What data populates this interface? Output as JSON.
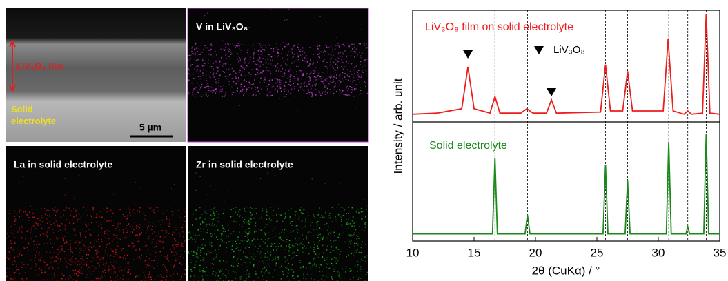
{
  "images": {
    "sem": {
      "film_label": "LiV₃O₈ film",
      "electrolyte_label": "Solid electrolyte",
      "scale_bar": "5 µm"
    },
    "maps": [
      {
        "label": "V in LiV₃O₈",
        "color": "#c040d0"
      },
      {
        "label": "La in solid electrolyte",
        "color": "#d01818"
      },
      {
        "label": "Zr in solid electrolyte",
        "color": "#20b020"
      }
    ]
  },
  "chart_data": [
    {
      "type": "line",
      "ylabel": "Intensity / arb. unit",
      "xlim": [
        10,
        35
      ],
      "ylim": [
        0,
        100
      ],
      "x": [
        10,
        12,
        14.0,
        14.5,
        15.0,
        16.3,
        16.7,
        17.1,
        18.8,
        19.3,
        19.8,
        20.9,
        21.3,
        21.7,
        25.3,
        25.7,
        26.1,
        27.1,
        27.5,
        27.9,
        30.4,
        30.8,
        31.2,
        32.1,
        32.4,
        32.7,
        33.6,
        33.9,
        34.2,
        35
      ],
      "series": [
        {
          "name": "LiV₃O₈ film on solid electrolyte",
          "color": "#ee1c1c",
          "values": [
            7,
            8,
            12,
            50,
            12,
            8,
            23,
            8,
            8,
            12,
            8,
            8,
            20,
            8,
            9,
            52,
            10,
            10,
            46,
            10,
            10,
            75,
            10,
            7,
            10,
            7,
            8,
            98,
            8,
            7
          ]
        }
      ],
      "peak_markers": [
        14.5,
        21.3
      ],
      "annotation": "LiV₃O₈",
      "vlines": [
        16.7,
        19.35,
        25.7,
        27.5,
        30.85,
        32.4,
        33.9
      ]
    },
    {
      "type": "line",
      "xlabel": "2θ (CuKα) / °",
      "xlim": [
        10,
        35
      ],
      "ylim": [
        0,
        100
      ],
      "xticks": [
        10,
        15,
        20,
        25,
        30,
        35
      ],
      "x": [
        10,
        16.5,
        16.7,
        16.9,
        19.15,
        19.35,
        19.55,
        25.5,
        25.7,
        25.9,
        27.3,
        27.5,
        27.7,
        30.65,
        30.85,
        31.05,
        32.25,
        32.4,
        32.55,
        33.7,
        33.9,
        34.1,
        35
      ],
      "series": [
        {
          "name": "Solid electrolyte",
          "color": "#1a8a1a",
          "values": [
            6,
            6,
            70,
            6,
            6,
            22,
            6,
            6,
            64,
            6,
            6,
            51,
            6,
            6,
            83,
            6,
            6,
            12,
            6,
            6,
            90,
            6,
            6
          ]
        }
      ]
    }
  ]
}
